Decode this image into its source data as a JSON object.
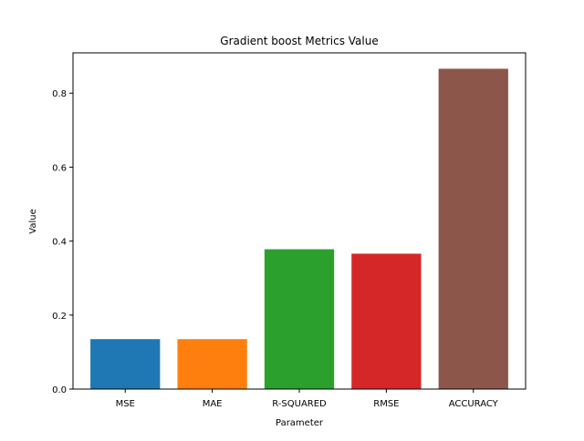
{
  "chart_data": {
    "type": "bar",
    "title": "Gradient boost Metrics Value",
    "xlabel": "Parameter",
    "ylabel": "Value",
    "categories": [
      "MSE",
      "MAE",
      "R-SQUARED",
      "RMSE",
      "ACCURACY"
    ],
    "values": [
      0.135,
      0.135,
      0.378,
      0.366,
      0.866
    ],
    "colors": [
      "#1f77b4",
      "#ff7f0e",
      "#2ca02c",
      "#d62728",
      "#8c564b"
    ],
    "ylim": [
      0,
      0.909
    ],
    "yticks": [
      0.0,
      0.2,
      0.4,
      0.6,
      0.8
    ],
    "ytick_labels": [
      "0.0",
      "0.2",
      "0.4",
      "0.6",
      "0.8"
    ],
    "grid": false,
    "legend": false
  }
}
